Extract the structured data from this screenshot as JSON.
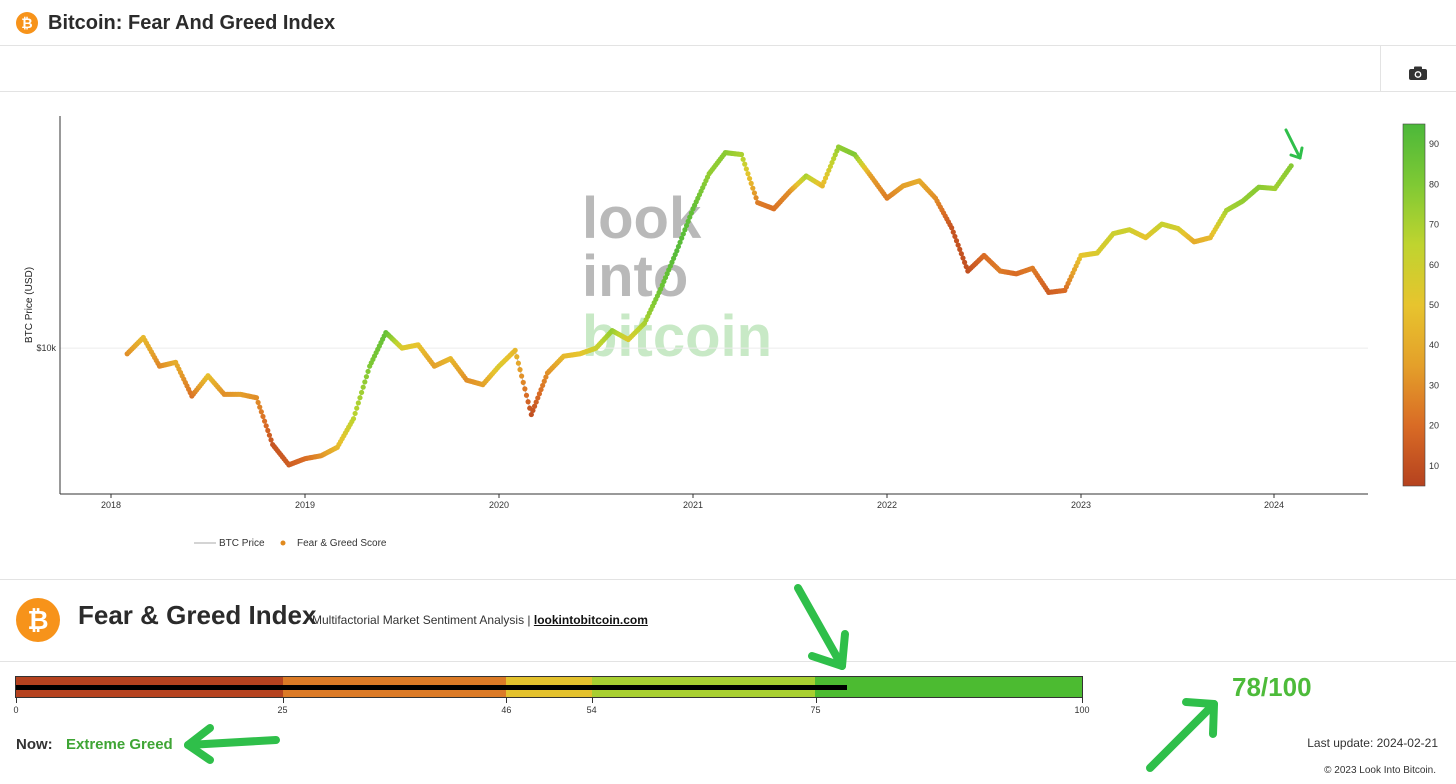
{
  "header": {
    "title": "Bitcoin: Fear And Greed Index",
    "logo_glyph": "₿"
  },
  "toolbar": {
    "camera_icon": "camera-icon"
  },
  "chart_data": {
    "type": "scatter",
    "title": "",
    "ylabel": "BTC Price (USD)",
    "xlabel": "",
    "y_scale": "log",
    "y_ticks": [
      {
        "value": 10000,
        "label": "$10k"
      }
    ],
    "x_ticks": [
      "2018",
      "2019",
      "2020",
      "2021",
      "2022",
      "2023",
      "2024"
    ],
    "legend": [
      {
        "name": "BTC Price",
        "marker": "line",
        "color": "#aaaaaa"
      },
      {
        "name": "Fear & Greed Score",
        "marker": "dot",
        "color": "#e08a1e"
      }
    ],
    "legend_position": "bottom-left",
    "colorbar": {
      "ticks": [
        10,
        20,
        30,
        40,
        50,
        60,
        70,
        80,
        90
      ],
      "min": 5,
      "max": 95,
      "colors": [
        "#b5421f",
        "#d96b25",
        "#e4a02a",
        "#e7c42e",
        "#bfd42f",
        "#7fc934",
        "#4cb83a"
      ]
    },
    "series": [
      {
        "name": "BTC Price",
        "x": [
          "2018-02",
          "2018-03",
          "2018-04",
          "2018-05",
          "2018-06",
          "2018-07",
          "2018-08",
          "2018-09",
          "2018-10",
          "2018-11",
          "2018-12",
          "2019-01",
          "2019-02",
          "2019-03",
          "2019-04",
          "2019-05",
          "2019-06",
          "2019-07",
          "2019-08",
          "2019-09",
          "2019-10",
          "2019-11",
          "2019-12",
          "2020-01",
          "2020-02",
          "2020-03",
          "2020-04",
          "2020-05",
          "2020-06",
          "2020-07",
          "2020-08",
          "2020-09",
          "2020-10",
          "2020-11",
          "2020-12",
          "2021-01",
          "2021-02",
          "2021-03",
          "2021-04",
          "2021-05",
          "2021-06",
          "2021-07",
          "2021-08",
          "2021-09",
          "2021-10",
          "2021-11",
          "2021-12",
          "2022-01",
          "2022-02",
          "2022-03",
          "2022-04",
          "2022-05",
          "2022-06",
          "2022-07",
          "2022-08",
          "2022-09",
          "2022-10",
          "2022-11",
          "2022-12",
          "2023-01",
          "2023-02",
          "2023-03",
          "2023-04",
          "2023-05",
          "2023-06",
          "2023-07",
          "2023-08",
          "2023-09",
          "2023-10",
          "2023-11",
          "2023-12",
          "2024-01",
          "2024-02"
        ],
        "values": [
          9500,
          11000,
          8500,
          8800,
          6500,
          7800,
          6600,
          6600,
          6400,
          4200,
          3500,
          3700,
          3800,
          4100,
          5300,
          8500,
          11500,
          10000,
          10300,
          8500,
          9100,
          7500,
          7200,
          8500,
          9800,
          5500,
          8000,
          9300,
          9500,
          10000,
          11700,
          10800,
          12500,
          17000,
          24000,
          35000,
          48000,
          58000,
          57000,
          37000,
          35000,
          41000,
          47000,
          43000,
          61000,
          57000,
          47000,
          38500,
          43000,
          45000,
          38500,
          29500,
          20000,
          23000,
          20000,
          19500,
          20500,
          16500,
          16800,
          23000,
          23500,
          28000,
          29000,
          27000,
          30500,
          29300,
          26000,
          27000,
          34500,
          37500,
          42500,
          42000,
          51500
        ]
      },
      {
        "name": "Fear & Greed Score",
        "values": [
          30,
          45,
          28,
          40,
          22,
          48,
          30,
          35,
          30,
          12,
          15,
          20,
          30,
          45,
          65,
          80,
          88,
          55,
          50,
          35,
          45,
          30,
          35,
          55,
          45,
          10,
          30,
          45,
          50,
          60,
          75,
          55,
          70,
          85,
          92,
          88,
          75,
          78,
          70,
          25,
          22,
          30,
          70,
          45,
          75,
          80,
          35,
          25,
          35,
          40,
          30,
          12,
          10,
          20,
          25,
          20,
          25,
          15,
          20,
          50,
          55,
          60,
          60,
          50,
          62,
          58,
          40,
          45,
          70,
          75,
          78,
          72,
          78
        ]
      }
    ]
  },
  "watermark": {
    "line1": "look",
    "line2": "into",
    "line3": "bitcoin"
  },
  "fg_panel": {
    "logo_glyph": "₿",
    "title": "Fear & Greed Index",
    "subtitle": "Multifactorial Market Sentiment Analysis |",
    "link": "lookintobitcoin.com"
  },
  "gauge": {
    "value": 78,
    "max": 100,
    "segments": [
      {
        "from": 0,
        "to": 25,
        "color": "#b5421f"
      },
      {
        "from": 25,
        "to": 46,
        "color": "#db7a26"
      },
      {
        "from": 46,
        "to": 54,
        "color": "#e3c12d"
      },
      {
        "from": 54,
        "to": 75,
        "color": "#a8cf31"
      },
      {
        "from": 75,
        "to": 100,
        "color": "#4cbb31"
      }
    ],
    "ticks": [
      "0",
      "25",
      "46",
      "54",
      "75",
      "100"
    ]
  },
  "status": {
    "now_label": "Now:",
    "now_value": "Extreme Greed",
    "score_text": "78/100",
    "last_update": "Last update: 2024-02-21",
    "copyright": "© 2023 Look Into Bitcoin."
  },
  "annotation_color": "#2fbf4a"
}
